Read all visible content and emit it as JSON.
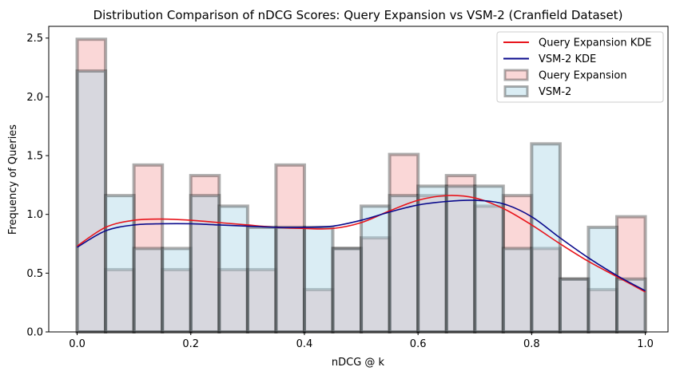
{
  "chart_data": {
    "type": "bar",
    "title": "Distribution Comparison of nDCG Scores: Query Expansion vs VSM-2 (Cranfield Dataset)",
    "xlabel": "nDCG @ k",
    "ylabel": "Frequency of Queries",
    "xlim": [
      -0.05,
      1.04
    ],
    "ylim": [
      0,
      2.6
    ],
    "xticks": [
      0.0,
      0.2,
      0.4,
      0.6,
      0.8,
      1.0
    ],
    "xtick_labels": [
      "0.0",
      "0.2",
      "0.4",
      "0.6",
      "0.8",
      "1.0"
    ],
    "yticks": [
      0.0,
      0.5,
      1.0,
      1.5,
      2.0,
      2.5
    ],
    "ytick_labels": [
      "0.0",
      "0.5",
      "1.0",
      "1.5",
      "2.0",
      "2.5"
    ],
    "grid": false,
    "legend_position": "top-right",
    "bin_edges": [
      0.0,
      0.05,
      0.1,
      0.15,
      0.2,
      0.25,
      0.3,
      0.35,
      0.4,
      0.45,
      0.5,
      0.55,
      0.6,
      0.65,
      0.7,
      0.75,
      0.8,
      0.85,
      0.9,
      0.95,
      1.0
    ],
    "series": [
      {
        "name": "Query Expansion",
        "kind": "histogram",
        "color": "#f4a6a6",
        "values": [
          2.49,
          0.53,
          1.42,
          0.53,
          1.33,
          0.53,
          0.53,
          1.42,
          0.36,
          0.71,
          0.8,
          1.51,
          1.16,
          1.33,
          1.07,
          1.16,
          0.71,
          0.45,
          0.36,
          0.98
        ]
      },
      {
        "name": "VSM-2",
        "kind": "histogram",
        "color": "#add8e6",
        "values": [
          2.22,
          1.16,
          0.71,
          0.71,
          1.16,
          1.07,
          0.89,
          0.89,
          0.89,
          0.71,
          1.07,
          1.16,
          1.24,
          1.24,
          1.24,
          0.71,
          1.6,
          0.45,
          0.89,
          0.45
        ]
      },
      {
        "name": "Query Expansion KDE",
        "kind": "line",
        "color": "#e8141b",
        "x": [
          0.0,
          0.05,
          0.1,
          0.15,
          0.2,
          0.25,
          0.3,
          0.35,
          0.4,
          0.45,
          0.5,
          0.55,
          0.6,
          0.65,
          0.7,
          0.75,
          0.8,
          0.85,
          0.9,
          0.95,
          1.0
        ],
        "values": [
          0.73,
          0.89,
          0.95,
          0.96,
          0.95,
          0.93,
          0.91,
          0.89,
          0.88,
          0.88,
          0.93,
          1.03,
          1.12,
          1.16,
          1.14,
          1.05,
          0.91,
          0.75,
          0.6,
          0.47,
          0.34
        ]
      },
      {
        "name": "VSM-2 KDE",
        "kind": "line",
        "color": "#0a0a8c",
        "x": [
          0.0,
          0.05,
          0.1,
          0.15,
          0.2,
          0.25,
          0.3,
          0.35,
          0.4,
          0.45,
          0.5,
          0.55,
          0.6,
          0.65,
          0.7,
          0.75,
          0.8,
          0.85,
          0.9,
          0.95,
          1.0
        ],
        "values": [
          0.72,
          0.86,
          0.91,
          0.92,
          0.92,
          0.91,
          0.9,
          0.89,
          0.89,
          0.9,
          0.95,
          1.02,
          1.08,
          1.11,
          1.12,
          1.09,
          0.98,
          0.8,
          0.63,
          0.48,
          0.35
        ]
      }
    ],
    "legend": [
      {
        "label": "Query Expansion KDE",
        "kind": "line",
        "color": "#e8141b"
      },
      {
        "label": "VSM-2 KDE",
        "kind": "line",
        "color": "#0a0a8c"
      },
      {
        "label": "Query Expansion",
        "kind": "patch",
        "color": "#f4a6a6"
      },
      {
        "label": "VSM-2",
        "kind": "patch",
        "color": "#add8e6"
      }
    ]
  }
}
